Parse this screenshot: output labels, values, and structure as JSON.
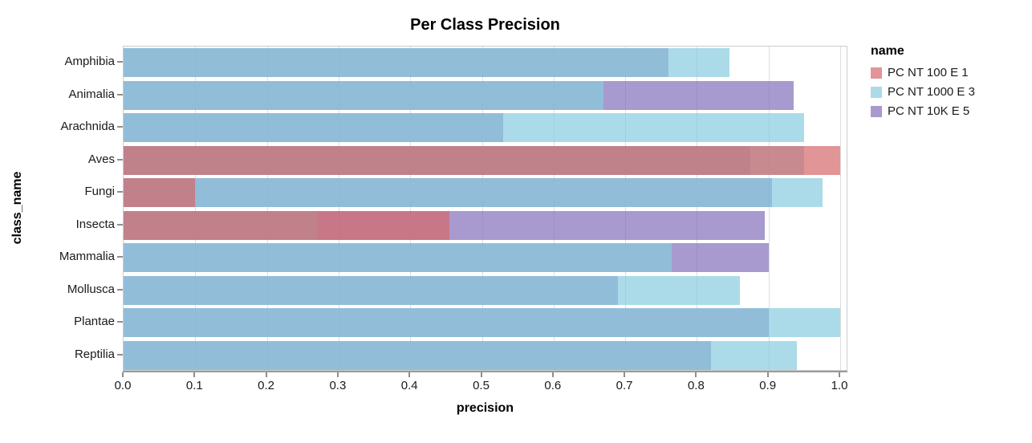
{
  "title": "Per Class Precision",
  "x_axis": {
    "label": "precision"
  },
  "y_axis": {
    "label": "class_name"
  },
  "legend": {
    "title": "name"
  },
  "chart_data": {
    "type": "bar",
    "orientation": "horizontal",
    "title": "Per Class Precision",
    "xlabel": "precision",
    "ylabel": "class_name",
    "xlim": [
      0,
      1.0
    ],
    "x_tick_labels": [
      "0.0",
      "0.1",
      "0.2",
      "0.3",
      "0.4",
      "0.5",
      "0.6",
      "0.7",
      "0.8",
      "0.9",
      "1.0"
    ],
    "grid": true,
    "legend_position": "right",
    "layer_opacity": 0.7,
    "categories": [
      "Amphibia",
      "Animalia",
      "Arachnida",
      "Aves",
      "Fungi",
      "Insecta",
      "Mammalia",
      "Mollusca",
      "Plantae",
      "Reptilia"
    ],
    "series": [
      {
        "name": "PC NT 100 E 1",
        "color": "#d4686a",
        "z": 3,
        "values": [
          0,
          0,
          0,
          1.0,
          0.1,
          0.455,
          0,
          0,
          0,
          0
        ]
      },
      {
        "name": "PC NT 1000 E 3",
        "color": "#87ccde",
        "z": 2,
        "values": [
          0.845,
          0.67,
          0.95,
          0.95,
          0.975,
          0.27,
          0.765,
          0.86,
          1.0,
          0.94
        ]
      },
      {
        "name": "PC NT 10K E 5",
        "color": "#836fb9",
        "z": 1,
        "values": [
          0.76,
          0.935,
          0.53,
          0.875,
          0.905,
          0.895,
          0.9,
          0.69,
          0.9,
          0.82
        ]
      }
    ]
  }
}
